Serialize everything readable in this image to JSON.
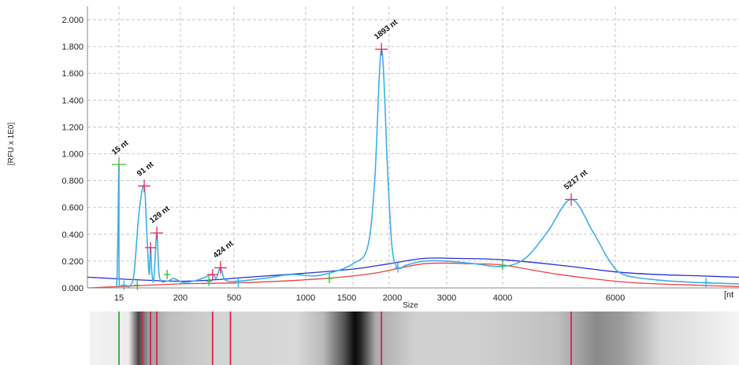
{
  "colors": {
    "trace": "#3daee9",
    "upper_baseline": "#2a2fd6",
    "lower_baseline": "#e8423c",
    "peak_marker": "#e8285a",
    "marker_marker": "#3cbf3c",
    "grid": "#b9b9b9",
    "gel_band_peak": "#e0204e",
    "gel_band_marker": "#39b54a"
  },
  "chart_data": {
    "type": "line",
    "ylabel": "[RFU x 1E0]",
    "xlabel": "Size",
    "x_unit_label": "[nt",
    "ylim": [
      0,
      2.1
    ],
    "y_ticks": [
      "0.000",
      "0.200",
      "0.400",
      "0.600",
      "0.800",
      "1.000",
      "1.200",
      "1.400",
      "1.600",
      "1.800",
      "2.000"
    ],
    "x_ticks": [
      "15",
      "200",
      "500",
      "1000",
      "1500",
      "2000",
      "3000",
      "4000",
      "6000"
    ],
    "grid": true,
    "peaks": [
      {
        "label": "15 nt",
        "size": 15,
        "height": 0.92,
        "kind": "marker"
      },
      {
        "label": "91 nt",
        "size": 91,
        "height": 0.76,
        "kind": "peak"
      },
      {
        "label": "129 nt",
        "size": 129,
        "height": 0.41,
        "kind": "peak"
      },
      {
        "label": "424 nt",
        "size": 424,
        "height": 0.15,
        "kind": "peak"
      },
      {
        "label": "1893 nt",
        "size": 1893,
        "height": 1.78,
        "kind": "peak"
      },
      {
        "label": "5217 nt",
        "size": 5217,
        "height": 0.66,
        "kind": "peak"
      }
    ],
    "unlabeled_peaks": [
      {
        "size": 110,
        "height": 0.3
      },
      {
        "size": 380,
        "height": 0.1
      }
    ],
    "series": [
      {
        "role": "trace",
        "points": [
          [
            0,
            0.0
          ],
          [
            12,
            0.0
          ],
          [
            14,
            0.05
          ],
          [
            15,
            0.92
          ],
          [
            16,
            0.02
          ],
          [
            30,
            0.0
          ],
          [
            45,
            0.01
          ],
          [
            60,
            0.1
          ],
          [
            75,
            0.55
          ],
          [
            91,
            0.76
          ],
          [
            100,
            0.35
          ],
          [
            106,
            0.1
          ],
          [
            110,
            0.3
          ],
          [
            114,
            0.12
          ],
          [
            120,
            0.06
          ],
          [
            129,
            0.41
          ],
          [
            137,
            0.08
          ],
          [
            160,
            0.05
          ],
          [
            180,
            0.07
          ],
          [
            220,
            0.04
          ],
          [
            300,
            0.06
          ],
          [
            380,
            0.1
          ],
          [
            400,
            0.07
          ],
          [
            424,
            0.15
          ],
          [
            450,
            0.06
          ],
          [
            520,
            0.05
          ],
          [
            700,
            0.07
          ],
          [
            900,
            0.1
          ],
          [
            1100,
            0.09
          ],
          [
            1300,
            0.12
          ],
          [
            1500,
            0.18
          ],
          [
            1700,
            0.3
          ],
          [
            1800,
            0.8
          ],
          [
            1893,
            1.78
          ],
          [
            1980,
            0.85
          ],
          [
            2050,
            0.3
          ],
          [
            2150,
            0.15
          ],
          [
            2300,
            0.17
          ],
          [
            2600,
            0.2
          ],
          [
            3000,
            0.2
          ],
          [
            3500,
            0.18
          ],
          [
            4000,
            0.16
          ],
          [
            4400,
            0.22
          ],
          [
            4800,
            0.42
          ],
          [
            5217,
            0.66
          ],
          [
            5600,
            0.42
          ],
          [
            5900,
            0.2
          ],
          [
            6200,
            0.1
          ],
          [
            7000,
            0.06
          ],
          [
            8000,
            0.04
          ],
          [
            9000,
            0.03
          ]
        ]
      },
      {
        "role": "upper-baseline",
        "points": [
          [
            0,
            0.08
          ],
          [
            200,
            0.05
          ],
          [
            600,
            0.08
          ],
          [
            1000,
            0.11
          ],
          [
            1500,
            0.14
          ],
          [
            2000,
            0.18
          ],
          [
            2600,
            0.22
          ],
          [
            3200,
            0.22
          ],
          [
            4000,
            0.21
          ],
          [
            5000,
            0.17
          ],
          [
            6000,
            0.12
          ],
          [
            7000,
            0.1
          ],
          [
            8000,
            0.09
          ],
          [
            9000,
            0.08
          ]
        ]
      },
      {
        "role": "lower-baseline",
        "points": [
          [
            0,
            0.0
          ],
          [
            15,
            0.01
          ],
          [
            200,
            0.03
          ],
          [
            600,
            0.04
          ],
          [
            1200,
            0.07
          ],
          [
            1800,
            0.11
          ],
          [
            2600,
            0.18
          ],
          [
            3400,
            0.18
          ],
          [
            4000,
            0.17
          ],
          [
            5000,
            0.1
          ],
          [
            6000,
            0.05
          ],
          [
            7000,
            0.03
          ],
          [
            8000,
            0.02
          ],
          [
            9000,
            0.01
          ]
        ]
      }
    ],
    "gel_bands": [
      {
        "size": 15,
        "kind": "marker"
      },
      {
        "size": 85,
        "kind": "peak"
      },
      {
        "size": 110,
        "kind": "peak"
      },
      {
        "size": 129,
        "kind": "peak"
      },
      {
        "size": 380,
        "kind": "peak"
      },
      {
        "size": 480,
        "kind": "peak"
      },
      {
        "size": 1893,
        "kind": "peak"
      },
      {
        "size": 5217,
        "kind": "peak"
      }
    ]
  }
}
